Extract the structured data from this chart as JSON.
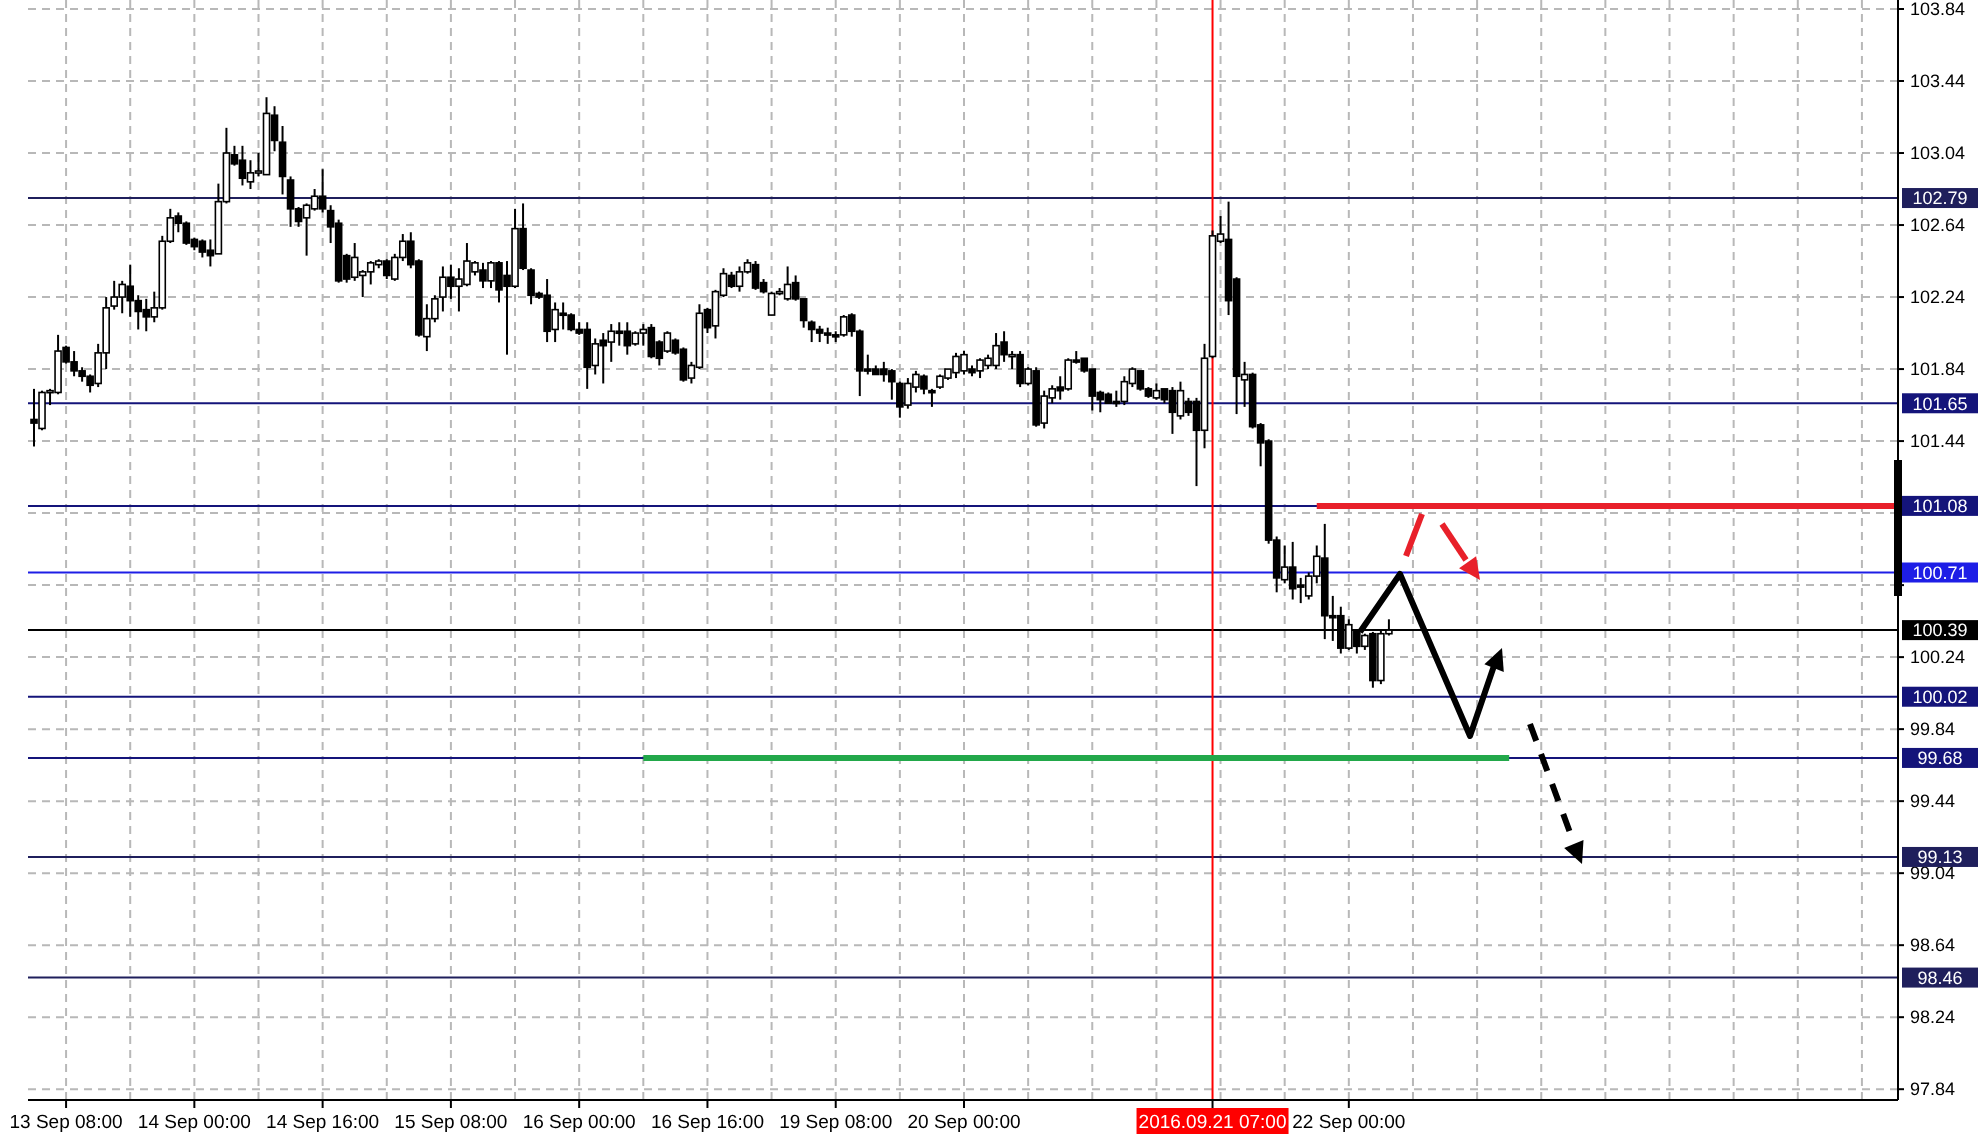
{
  "chart_data": {
    "type": "candlestick",
    "categories": [
      null,
      null,
      null,
      null,
      "13 Sep 08:00",
      null,
      null,
      null,
      null,
      null,
      null,
      null,
      null,
      null,
      null,
      null,
      null,
      null,
      null,
      null,
      "14 Sep 00:00",
      null,
      null,
      null,
      null,
      null,
      null,
      null,
      null,
      null,
      null,
      null,
      null,
      null,
      null,
      null,
      "14 Sep 16:00",
      null,
      null,
      null,
      null,
      null,
      null,
      null,
      null,
      null,
      null,
      null,
      null,
      null,
      null,
      null,
      "15 Sep 08:00",
      null,
      null,
      null,
      null,
      null,
      null,
      null,
      null,
      null,
      null,
      null,
      null,
      null,
      null,
      null,
      "16 Sep 00:00",
      null,
      null,
      null,
      null,
      null,
      null,
      null,
      null,
      null,
      null,
      null,
      null,
      null,
      null,
      null,
      "16 Sep 16:00",
      null,
      null,
      null,
      null,
      null,
      null,
      null,
      null,
      null,
      null,
      null,
      null,
      null,
      null,
      null,
      "19 Sep 08:00",
      null,
      null,
      null,
      null,
      null,
      null,
      null,
      null,
      null,
      null,
      null,
      null,
      null,
      null,
      null,
      "20 Sep 00:00",
      null,
      null,
      null,
      null,
      null,
      null,
      null,
      null,
      null,
      null,
      null,
      null,
      null,
      null,
      null,
      null,
      null,
      null,
      null,
      null,
      null,
      null,
      null,
      null,
      null,
      null,
      null,
      null,
      null,
      null,
      "2016.09.21 07:00",
      null,
      null,
      null,
      null,
      null,
      null,
      null,
      null,
      null,
      null,
      null,
      null,
      null,
      null,
      null,
      null,
      "22 Sep 00:00",
      null,
      null,
      null,
      null,
      null,
      null,
      null,
      null,
      null,
      null,
      null,
      null,
      null,
      null,
      null,
      null,
      null,
      null,
      null,
      null,
      null,
      null,
      null,
      null,
      null,
      null,
      null,
      null,
      null,
      null,
      null,
      null,
      null,
      null,
      null,
      null,
      null,
      null,
      null,
      null,
      null,
      null,
      null,
      null,
      null,
      null,
      null,
      null,
      null,
      null,
      null,
      null,
      null,
      null,
      null,
      null,
      null,
      null,
      null,
      null,
      null,
      null,
      null,
      null,
      null,
      null,
      null,
      null
    ],
    "ohlc": [
      [
        101.56,
        101.73,
        101.41,
        101.54
      ],
      [
        101.51,
        101.72,
        101.5,
        101.71
      ],
      [
        101.71,
        101.73,
        101.64,
        101.72
      ],
      [
        101.71,
        102.03,
        101.7,
        101.94
      ],
      [
        101.96,
        101.97,
        101.87,
        101.88
      ],
      [
        101.88,
        101.94,
        101.8,
        101.83
      ],
      [
        101.83,
        101.85,
        101.77,
        101.8
      ],
      [
        101.8,
        101.81,
        101.71,
        101.75
      ],
      [
        101.76,
        101.98,
        101.74,
        101.93
      ],
      [
        101.93,
        102.24,
        101.84,
        102.18
      ],
      [
        102.19,
        102.33,
        102.17,
        102.24
      ],
      [
        102.24,
        102.33,
        102.15,
        102.31
      ],
      [
        102.3,
        102.42,
        102.13,
        102.22
      ],
      [
        102.22,
        102.25,
        102.06,
        102.16
      ],
      [
        102.17,
        102.23,
        102.05,
        102.13
      ],
      [
        102.13,
        102.27,
        102.1,
        102.18
      ],
      [
        102.18,
        102.58,
        102.17,
        102.55
      ],
      [
        102.55,
        102.73,
        102.54,
        102.68
      ],
      [
        102.69,
        102.71,
        102.6,
        102.65
      ],
      [
        102.65,
        102.66,
        102.53,
        102.54
      ],
      [
        102.56,
        102.57,
        102.5,
        102.52
      ],
      [
        102.55,
        102.56,
        102.46,
        102.49
      ],
      [
        102.5,
        102.56,
        102.41,
        102.47
      ],
      [
        102.48,
        102.87,
        102.48,
        102.77
      ],
      [
        102.77,
        103.18,
        102.76,
        103.04
      ],
      [
        103.03,
        103.08,
        102.97,
        102.98
      ],
      [
        103.0,
        103.08,
        102.86,
        102.9
      ],
      [
        102.88,
        103.0,
        102.84,
        102.93
      ],
      [
        102.93,
        103.04,
        102.91,
        102.94
      ],
      [
        102.92,
        103.35,
        102.92,
        103.26
      ],
      [
        103.25,
        103.3,
        103.05,
        103.11
      ],
      [
        103.1,
        103.19,
        102.81,
        102.91
      ],
      [
        102.89,
        102.91,
        102.63,
        102.73
      ],
      [
        102.73,
        102.74,
        102.63,
        102.66
      ],
      [
        102.68,
        102.76,
        102.47,
        102.75
      ],
      [
        102.73,
        102.84,
        102.72,
        102.8
      ],
      [
        102.8,
        102.95,
        102.71,
        102.73
      ],
      [
        102.72,
        102.75,
        102.54,
        102.63
      ],
      [
        102.65,
        102.67,
        102.32,
        102.33
      ],
      [
        102.47,
        102.48,
        102.32,
        102.34
      ],
      [
        102.35,
        102.54,
        102.33,
        102.46
      ],
      [
        102.36,
        102.39,
        102.24,
        102.38
      ],
      [
        102.38,
        102.44,
        102.31,
        102.43
      ],
      [
        102.42,
        102.45,
        102.4,
        102.44
      ],
      [
        102.44,
        102.45,
        102.34,
        102.36
      ],
      [
        102.34,
        102.48,
        102.33,
        102.46
      ],
      [
        102.46,
        102.59,
        102.44,
        102.55
      ],
      [
        102.55,
        102.6,
        102.4,
        102.42
      ],
      [
        102.44,
        102.45,
        102.02,
        102.03
      ],
      [
        102.02,
        102.2,
        101.94,
        102.12
      ],
      [
        102.12,
        102.25,
        102.1,
        102.23
      ],
      [
        102.24,
        102.41,
        102.16,
        102.35
      ],
      [
        102.35,
        102.42,
        102.23,
        102.3
      ],
      [
        102.3,
        102.4,
        102.16,
        102.34
      ],
      [
        102.31,
        102.54,
        102.3,
        102.44
      ],
      [
        102.38,
        102.44,
        102.36,
        102.43
      ],
      [
        102.39,
        102.43,
        102.29,
        102.33
      ],
      [
        102.33,
        102.44,
        102.29,
        102.43
      ],
      [
        102.43,
        102.44,
        102.21,
        102.28
      ],
      [
        102.36,
        102.44,
        101.92,
        102.3
      ],
      [
        102.3,
        102.73,
        102.29,
        102.62
      ],
      [
        102.62,
        102.76,
        102.39,
        102.4
      ],
      [
        102.39,
        102.4,
        102.2,
        102.25
      ],
      [
        102.26,
        102.27,
        102.23,
        102.24
      ],
      [
        102.25,
        102.34,
        101.99,
        102.05
      ],
      [
        102.06,
        102.21,
        101.99,
        102.17
      ],
      [
        102.15,
        102.21,
        102.06,
        102.14
      ],
      [
        102.14,
        102.15,
        102.05,
        102.06
      ],
      [
        102.06,
        102.1,
        102.03,
        102.04
      ],
      [
        102.06,
        102.1,
        101.73,
        101.85
      ],
      [
        101.86,
        102.01,
        101.81,
        101.98
      ],
      [
        102.0,
        102.04,
        101.76,
        101.97
      ],
      [
        101.99,
        102.09,
        101.88,
        102.05
      ],
      [
        102.05,
        102.1,
        101.97,
        102.04
      ],
      [
        102.05,
        102.1,
        101.92,
        101.97
      ],
      [
        101.98,
        102.05,
        101.97,
        102.04
      ],
      [
        102.04,
        102.09,
        101.97,
        102.06
      ],
      [
        102.07,
        102.09,
        101.9,
        101.91
      ],
      [
        101.99,
        102.0,
        101.86,
        101.9
      ],
      [
        101.94,
        102.05,
        101.93,
        102.04
      ],
      [
        102.0,
        102.01,
        101.92,
        101.93
      ],
      [
        101.95,
        101.96,
        101.77,
        101.78
      ],
      [
        101.79,
        101.88,
        101.76,
        101.86
      ],
      [
        101.85,
        102.2,
        101.84,
        102.15
      ],
      [
        102.17,
        102.18,
        102.04,
        102.07
      ],
      [
        102.08,
        102.28,
        102.01,
        102.27
      ],
      [
        102.25,
        102.4,
        102.24,
        102.37
      ],
      [
        102.36,
        102.38,
        102.29,
        102.3
      ],
      [
        102.3,
        102.41,
        102.27,
        102.38
      ],
      [
        102.38,
        102.45,
        102.37,
        102.43
      ],
      [
        102.42,
        102.44,
        102.28,
        102.29
      ],
      [
        102.32,
        102.34,
        102.26,
        102.27
      ],
      [
        102.14,
        102.27,
        102.14,
        102.26
      ],
      [
        102.26,
        102.29,
        102.25,
        102.27
      ],
      [
        102.23,
        102.41,
        102.22,
        102.31
      ],
      [
        102.32,
        102.36,
        102.22,
        102.23
      ],
      [
        102.23,
        102.23,
        102.07,
        102.11
      ],
      [
        102.1,
        102.11,
        101.99,
        102.06
      ],
      [
        102.06,
        102.08,
        101.99,
        102.04
      ],
      [
        102.04,
        102.07,
        101.98,
        102.03
      ],
      [
        102.03,
        102.05,
        101.99,
        102.02
      ],
      [
        102.03,
        102.14,
        102.02,
        102.13
      ],
      [
        102.14,
        102.15,
        102.02,
        102.05
      ],
      [
        102.05,
        102.06,
        101.69,
        101.83
      ],
      [
        101.84,
        101.92,
        101.81,
        101.83
      ],
      [
        101.84,
        101.86,
        101.81,
        101.81
      ],
      [
        101.84,
        101.88,
        101.77,
        101.81
      ],
      [
        101.83,
        101.84,
        101.67,
        101.77
      ],
      [
        101.76,
        101.77,
        101.57,
        101.63
      ],
      [
        101.64,
        101.79,
        101.62,
        101.76
      ],
      [
        101.74,
        101.83,
        101.71,
        101.81
      ],
      [
        101.8,
        101.81,
        101.7,
        101.73
      ],
      [
        101.72,
        101.73,
        101.63,
        101.71
      ],
      [
        101.74,
        101.81,
        101.73,
        101.8
      ],
      [
        101.79,
        101.84,
        101.78,
        101.84
      ],
      [
        101.82,
        101.93,
        101.79,
        101.91
      ],
      [
        101.83,
        101.94,
        101.81,
        101.92
      ],
      [
        101.84,
        101.86,
        101.8,
        101.82
      ],
      [
        101.83,
        101.9,
        101.79,
        101.89
      ],
      [
        101.86,
        101.92,
        101.84,
        101.9
      ],
      [
        101.86,
        102.04,
        101.84,
        101.97
      ],
      [
        101.99,
        102.05,
        101.88,
        101.92
      ],
      [
        101.92,
        101.94,
        101.84,
        101.92
      ],
      [
        101.92,
        101.94,
        101.74,
        101.76
      ],
      [
        101.76,
        101.85,
        101.75,
        101.84
      ],
      [
        101.83,
        101.85,
        101.52,
        101.53
      ],
      [
        101.54,
        101.72,
        101.51,
        101.69
      ],
      [
        101.68,
        101.75,
        101.65,
        101.73
      ],
      [
        101.74,
        101.8,
        101.67,
        101.72
      ],
      [
        101.73,
        101.9,
        101.72,
        101.89
      ],
      [
        101.89,
        101.94,
        101.87,
        101.88
      ],
      [
        101.9,
        101.9,
        101.82,
        101.83
      ],
      [
        101.84,
        101.84,
        101.61,
        101.69
      ],
      [
        101.71,
        101.72,
        101.6,
        101.67
      ],
      [
        101.7,
        101.71,
        101.65,
        101.65
      ],
      [
        101.66,
        101.72,
        101.63,
        101.65
      ],
      [
        101.66,
        101.8,
        101.64,
        101.77
      ],
      [
        101.76,
        101.85,
        101.74,
        101.84
      ],
      [
        101.83,
        101.83,
        101.72,
        101.73
      ],
      [
        101.73,
        101.74,
        101.68,
        101.69
      ],
      [
        101.68,
        101.76,
        101.67,
        101.72
      ],
      [
        101.73,
        101.73,
        101.65,
        101.67
      ],
      [
        101.72,
        101.74,
        101.48,
        101.6
      ],
      [
        101.58,
        101.77,
        101.56,
        101.72
      ],
      [
        101.66,
        101.68,
        101.58,
        101.6
      ],
      [
        101.66,
        101.68,
        101.19,
        101.5
      ],
      [
        101.5,
        101.98,
        101.4,
        101.9
      ],
      [
        101.91,
        102.61,
        101.9,
        102.58
      ],
      [
        102.55,
        102.69,
        102.54,
        102.59
      ],
      [
        102.56,
        102.77,
        102.14,
        102.22
      ],
      [
        102.34,
        102.35,
        101.59,
        101.8
      ],
      [
        101.78,
        101.88,
        101.63,
        101.81
      ],
      [
        101.81,
        101.82,
        101.51,
        101.52
      ],
      [
        101.53,
        101.54,
        101.3,
        101.43
      ],
      [
        101.44,
        101.45,
        100.87,
        100.89
      ],
      [
        100.89,
        100.91,
        100.6,
        100.68
      ],
      [
        100.67,
        100.86,
        100.65,
        100.74
      ],
      [
        100.74,
        100.88,
        100.56,
        100.62
      ],
      [
        100.64,
        100.68,
        100.54,
        100.63
      ],
      [
        100.58,
        100.71,
        100.56,
        100.69
      ],
      [
        100.69,
        100.86,
        100.65,
        100.8
      ],
      [
        100.79,
        100.98,
        100.34,
        100.47
      ],
      [
        100.47,
        100.58,
        100.33,
        100.46
      ],
      [
        100.47,
        100.52,
        100.26,
        100.29
      ],
      [
        100.29,
        100.45,
        100.28,
        100.42
      ],
      [
        100.39,
        100.39,
        100.26,
        100.3
      ],
      [
        100.3,
        100.37,
        100.28,
        100.36
      ],
      [
        100.37,
        100.38,
        100.07,
        100.11
      ],
      [
        100.11,
        100.39,
        100.09,
        100.37
      ],
      [
        100.37,
        100.45,
        100.36,
        100.39
      ],
      null,
      null,
      null,
      null,
      null,
      null,
      null,
      null,
      null,
      null,
      null,
      null,
      null,
      null,
      null,
      null,
      null,
      null,
      null,
      null,
      null,
      null,
      null,
      null,
      null,
      null,
      null,
      null,
      null,
      null,
      null,
      null,
      null,
      null,
      null,
      null,
      null,
      null,
      null,
      null,
      null,
      null,
      null,
      null,
      null,
      null,
      null,
      null,
      null,
      null,
      null,
      null,
      null,
      null,
      null,
      null,
      null,
      null,
      null,
      null,
      null,
      null,
      null
    ],
    "series": [
      {
        "type": "line",
        "color": "#e8202a",
        "values": [
          null,
          null,
          null,
          null,
          null,
          null,
          null,
          null,
          null,
          null,
          null,
          null,
          null,
          null,
          null,
          null,
          null,
          null,
          null,
          null,
          null,
          null,
          null,
          null,
          null,
          null,
          null,
          null,
          null,
          null,
          null,
          null,
          null,
          null,
          null,
          null,
          null,
          null,
          null,
          null,
          null,
          null,
          null,
          null,
          null,
          null,
          null,
          null,
          null,
          null,
          null,
          null,
          null,
          null,
          null,
          null,
          null,
          null,
          null,
          null,
          null,
          null,
          null,
          null,
          null,
          null,
          null,
          null,
          null,
          null,
          null,
          null,
          null,
          null,
          null,
          null,
          null,
          null,
          null,
          null,
          null,
          null,
          null,
          null,
          null,
          null,
          null,
          null,
          null,
          null,
          null,
          null,
          null,
          null,
          null,
          null,
          null,
          null,
          null,
          null,
          null,
          null,
          null,
          null,
          null,
          null,
          null,
          null,
          null,
          null,
          null,
          null,
          null,
          null,
          null,
          null,
          null,
          null,
          null,
          null,
          null,
          null,
          null,
          null,
          null,
          null,
          null,
          null,
          null,
          null,
          null,
          null,
          null,
          null,
          null,
          null,
          null,
          null,
          null,
          null,
          null,
          null,
          null,
          null,
          null,
          null,
          null,
          null,
          null,
          null,
          null,
          null,
          null,
          null,
          null,
          null,
          null,
          null,
          null,
          null,
          101.08,
          101.08,
          101.08,
          101.08,
          101.08,
          101.08,
          101.08,
          101.08,
          101.08,
          101.08,
          101.08,
          101.08,
          101.08,
          101.08,
          101.08,
          101.08,
          101.08,
          101.08,
          101.08,
          101.08,
          101.08,
          101.08,
          101.08,
          101.08,
          101.08,
          101.08,
          101.08,
          101.08,
          101.08,
          101.08,
          101.08,
          101.08,
          101.08,
          101.08,
          101.08,
          101.08,
          101.08,
          101.08,
          101.08,
          101.08,
          101.08,
          101.08,
          101.08,
          101.08,
          101.08,
          101.08,
          101.08,
          101.08,
          101.08,
          101.08,
          101.08,
          101.08,
          101.08,
          101.08,
          101.08,
          101.08,
          101.08,
          101.08,
          101.08,
          101.08,
          101.08,
          101.08,
          101.08,
          101.08,
          101.08,
          101.08,
          101.08,
          101.08,
          101.08,
          101.08,
          101.08,
          101.08,
          101.08
        ]
      },
      {
        "type": "line",
        "color": "#22a84a",
        "values": [
          null,
          null,
          null,
          null,
          null,
          null,
          null,
          null,
          null,
          null,
          null,
          null,
          null,
          null,
          null,
          null,
          null,
          null,
          null,
          null,
          null,
          null,
          null,
          null,
          null,
          null,
          null,
          null,
          null,
          null,
          null,
          null,
          null,
          null,
          null,
          null,
          null,
          null,
          null,
          null,
          null,
          null,
          null,
          null,
          null,
          null,
          null,
          null,
          null,
          null,
          null,
          null,
          null,
          null,
          null,
          null,
          null,
          null,
          null,
          null,
          null,
          null,
          null,
          null,
          null,
          null,
          null,
          null,
          null,
          null,
          null,
          null,
          null,
          null,
          null,
          null,
          99.68,
          99.68,
          99.68,
          99.68,
          99.68,
          99.68,
          99.68,
          99.68,
          99.68,
          99.68,
          99.68,
          99.68,
          99.68,
          99.68,
          99.68,
          99.68,
          99.68,
          99.68,
          99.68,
          99.68,
          99.68,
          99.68,
          99.68,
          99.68,
          99.68,
          99.68,
          99.68,
          99.68,
          99.68,
          99.68,
          99.68,
          99.68,
          99.68,
          99.68,
          99.68,
          99.68,
          99.68,
          99.68,
          99.68,
          99.68,
          99.68,
          99.68,
          99.68,
          99.68,
          99.68,
          99.68,
          99.68,
          99.68,
          99.68,
          99.68,
          99.68,
          99.68,
          99.68,
          99.68,
          99.68,
          99.68,
          99.68,
          99.68,
          99.68,
          99.68,
          99.68,
          99.68,
          99.68,
          99.68,
          99.68,
          99.68,
          99.68,
          99.68,
          99.68,
          99.68,
          99.68,
          99.68,
          99.68,
          99.68,
          99.68,
          99.68,
          99.68,
          99.68,
          99.68,
          99.68,
          99.68,
          99.68,
          99.68,
          99.68,
          99.68,
          99.68,
          99.68,
          99.68,
          99.68,
          99.68,
          99.68,
          99.68,
          99.68,
          99.68,
          99.68,
          99.68,
          99.68,
          99.68,
          99.68,
          99.68,
          99.68,
          99.68,
          99.68,
          99.68,
          99.68,
          99.68,
          99.68,
          99.68,
          99.68,
          null,
          null,
          null,
          null,
          null,
          null,
          null,
          null,
          null,
          null,
          null,
          null,
          null,
          null,
          null,
          null,
          null,
          null,
          null,
          null,
          null,
          null,
          null,
          null,
          null,
          null,
          null,
          null,
          null,
          null,
          null,
          null,
          null,
          null,
          null,
          null,
          null,
          null,
          null,
          null,
          null,
          null,
          null,
          null,
          null,
          null,
          null,
          null
        ]
      }
    ],
    "ylim": [
      97.78,
      103.89
    ],
    "yticks": [
      103.84,
      103.44,
      103.04,
      102.64,
      102.24,
      101.84,
      101.44,
      {
        "value": 101.04,
        "label": null
      },
      {
        "value": 100.64,
        "label": null
      },
      100.24,
      99.84,
      99.44,
      99.04,
      98.64,
      98.24,
      97.84
    ],
    "grid": true,
    "ref_lines": [
      {
        "axis": "y",
        "value": 102.79,
        "label": "102.79",
        "color": "#1f1f5c"
      },
      {
        "axis": "y",
        "value": 101.65,
        "label": "101.65",
        "color": "#14147a"
      },
      {
        "axis": "y",
        "value": 101.08,
        "label": "101.08",
        "color": "#14147a"
      },
      {
        "axis": "y",
        "value": 100.71,
        "label": "100.71",
        "color": "#1e1ee6"
      },
      {
        "axis": "y",
        "value": 100.39,
        "label": "100.39",
        "color": "#000000"
      },
      {
        "axis": "y",
        "value": 100.02,
        "label": "100.02",
        "color": "#14147a"
      },
      {
        "axis": "y",
        "value": 99.68,
        "label": "99.68",
        "color": "#14147a"
      },
      {
        "axis": "y",
        "value": 99.13,
        "label": "99.13",
        "color": "#1f1f5c"
      },
      {
        "axis": "y",
        "value": 98.46,
        "label": "98.46",
        "color": "#1f1f5c"
      },
      {
        "axis": "x",
        "value": "2016.09.21 07:00",
        "color": "#ff0000"
      }
    ]
  }
}
